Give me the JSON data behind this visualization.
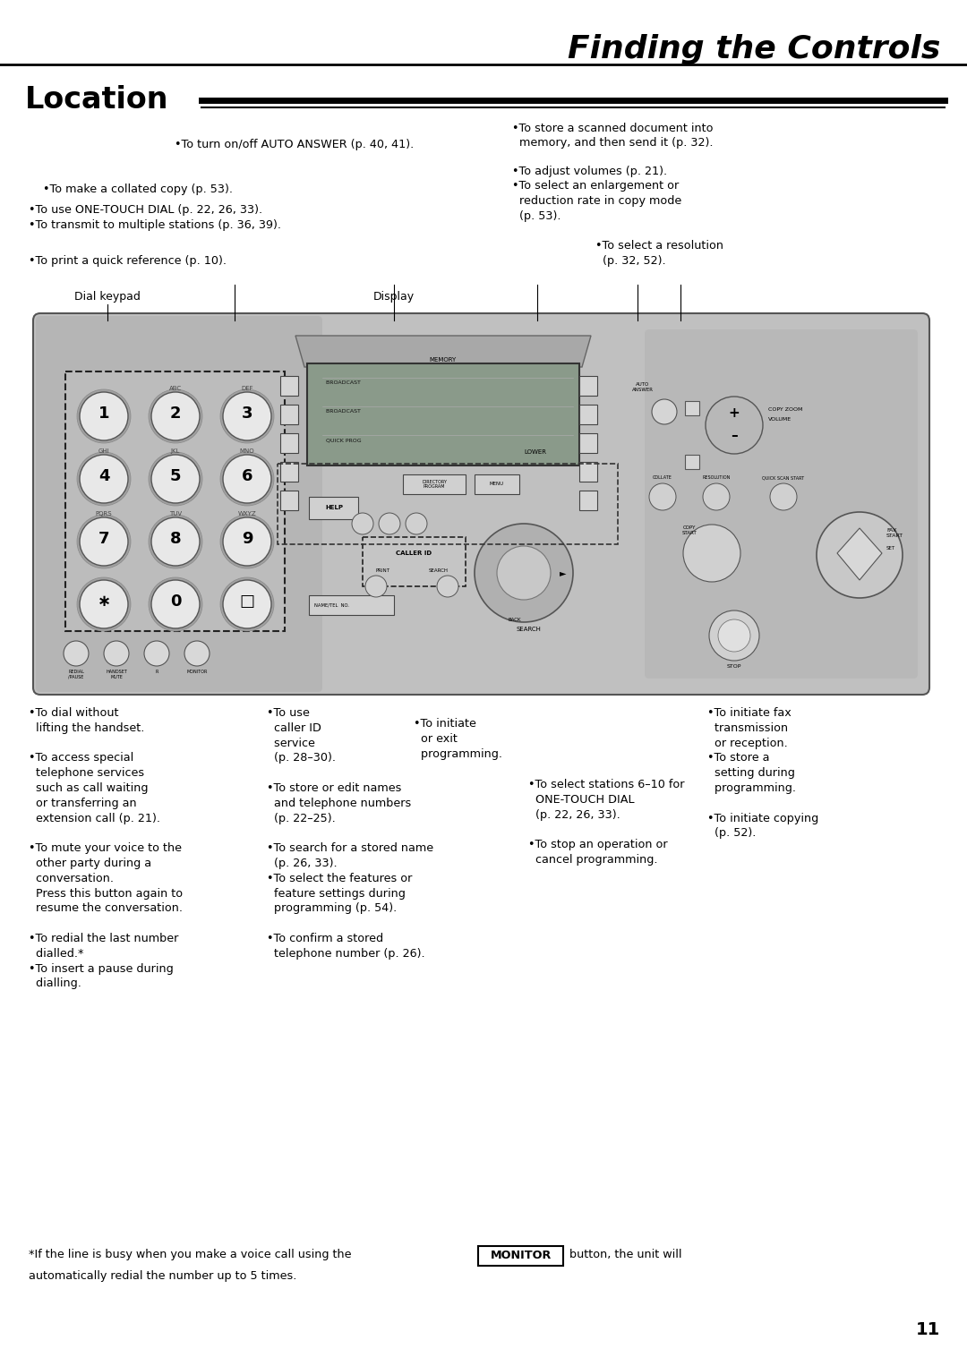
{
  "title": "Finding the Controls",
  "section": "Location",
  "bg_color": "#ffffff",
  "text_color": "#000000",
  "title_fontsize": 26,
  "section_fontsize": 24,
  "body_fontsize": 9.2,
  "footnote_fontsize": 9.2,
  "page_number": "11",
  "machine_color": "#c0c0c0",
  "machine_dark": "#a0a0a0",
  "machine_edge": "#555555",
  "btn_color": "#e8e8e8",
  "display_color": "#9aaa8a"
}
